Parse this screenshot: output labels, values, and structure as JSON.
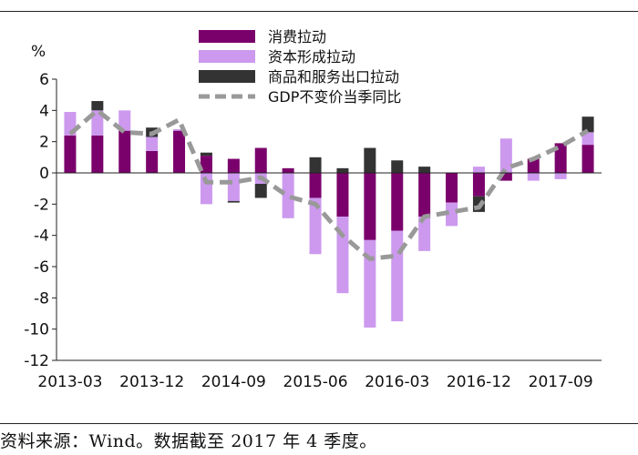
{
  "chart_data": {
    "type": "bar",
    "stacked": true,
    "unit_label": "%",
    "ylim": [
      -12,
      6
    ],
    "yticks": [
      6,
      4,
      2,
      0,
      -2,
      -4,
      -6,
      -8,
      -10,
      -12
    ],
    "quarters": [
      "2013-03",
      "2013-06",
      "2013-09",
      "2013-12",
      "2014-03",
      "2014-06",
      "2014-09",
      "2014-12",
      "2015-03",
      "2015-06",
      "2015-09",
      "2015-12",
      "2016-03",
      "2016-06",
      "2016-09",
      "2016-12",
      "2017-03",
      "2017-06",
      "2017-09",
      "2017-12"
    ],
    "x_tick_labels": [
      "2013-03",
      "2013-12",
      "2014-09",
      "2015-06",
      "2016-03",
      "2016-12",
      "2017-09"
    ],
    "x_tick_index": [
      0,
      3,
      6,
      9,
      12,
      15,
      18
    ],
    "series": [
      {
        "name": "消费拉动",
        "color": "#7a006b",
        "values": [
          2.4,
          2.4,
          2.7,
          1.4,
          2.7,
          1.1,
          0.9,
          1.6,
          0.3,
          -1.6,
          -2.8,
          -4.3,
          -3.7,
          -2.8,
          -1.9,
          -1.5,
          -0.5,
          0.9,
          1.9,
          1.8
        ]
      },
      {
        "name": "资本形成拉动",
        "color": "#cc99ee",
        "values": [
          1.5,
          1.6,
          1.3,
          0.9,
          0.1,
          -2.0,
          -1.8,
          -0.7,
          -2.9,
          -3.6,
          -4.9,
          -5.6,
          -5.8,
          -2.2,
          -1.5,
          0.4,
          2.2,
          -0.5,
          -0.4,
          0.8
        ]
      },
      {
        "name": "商品和服务出口拉动",
        "color": "#333333",
        "values": [
          0.0,
          0.6,
          0.0,
          0.6,
          0.0,
          0.2,
          -0.1,
          -0.9,
          0.0,
          1.0,
          0.3,
          1.6,
          0.8,
          0.4,
          0.0,
          -1.0,
          0.0,
          0.0,
          0.0,
          1.0
        ]
      }
    ],
    "line": {
      "name": "GDP不变价当季同比",
      "color": "#999999",
      "values": [
        2.5,
        4.0,
        2.6,
        2.5,
        3.4,
        -0.6,
        -0.6,
        -0.3,
        -1.5,
        -2.0,
        -4.0,
        -5.5,
        -5.3,
        -2.8,
        -2.5,
        -2.2,
        0.3,
        0.9,
        1.7,
        2.7
      ]
    },
    "legend_position": "top-center"
  },
  "source_note": "资料来源：Wind。数据截至 2017 年 4 季度。"
}
